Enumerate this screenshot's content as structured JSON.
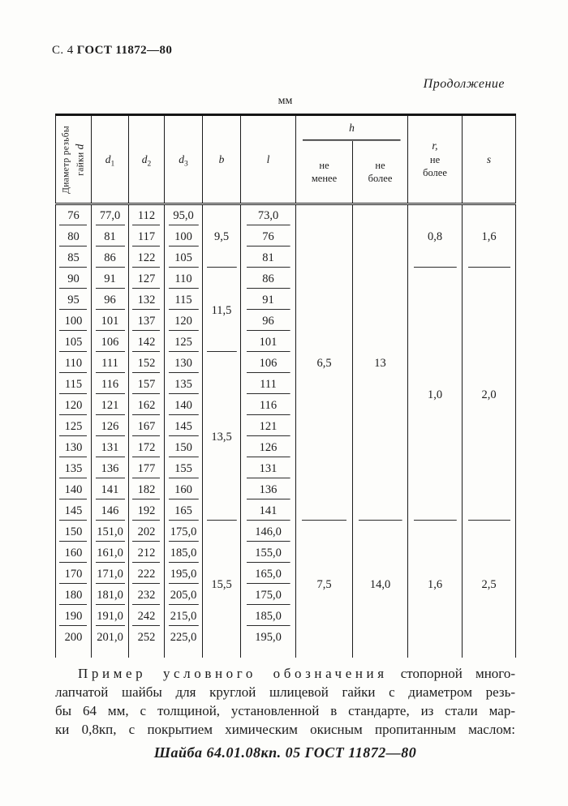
{
  "page_header": {
    "page_label": "С. 4",
    "standard": "ГОСТ 11872—80",
    "continuation": "Продолжение",
    "units": "мм"
  },
  "table": {
    "headers": {
      "col1_line1": "Диаметр резьбы",
      "col1_line2_prefix": "гайки ",
      "col1_d": "d",
      "d1_base": "d",
      "d1_sub": "1",
      "d2_base": "d",
      "d2_sub": "2",
      "d3_base": "d",
      "d3_sub": "3",
      "b": "b",
      "l": "l",
      "h_group": "h",
      "h_min": "не\nменее",
      "h_max": "не\nболее",
      "r_line1": "r,",
      "r_rest": "не\nболее",
      "s": "s"
    },
    "rows": [
      {
        "d": "76",
        "d1": "77,0",
        "d2": "112",
        "d3": "95,0",
        "l": "73,0"
      },
      {
        "d": "80",
        "d1": "81",
        "d2": "117",
        "d3": "100",
        "l": "76"
      },
      {
        "d": "85",
        "d1": "86",
        "d2": "122",
        "d3": "105",
        "l": "81"
      },
      {
        "d": "90",
        "d1": "91",
        "d2": "127",
        "d3": "110",
        "l": "86"
      },
      {
        "d": "95",
        "d1": "96",
        "d2": "132",
        "d3": "115",
        "l": "91"
      },
      {
        "d": "100",
        "d1": "101",
        "d2": "137",
        "d3": "120",
        "l": "96"
      },
      {
        "d": "105",
        "d1": "106",
        "d2": "142",
        "d3": "125",
        "l": "101"
      },
      {
        "d": "110",
        "d1": "111",
        "d2": "152",
        "d3": "130",
        "l": "106"
      },
      {
        "d": "115",
        "d1": "116",
        "d2": "157",
        "d3": "135",
        "l": "111"
      },
      {
        "d": "120",
        "d1": "121",
        "d2": "162",
        "d3": "140",
        "l": "116"
      },
      {
        "d": "125",
        "d1": "126",
        "d2": "167",
        "d3": "145",
        "l": "121"
      },
      {
        "d": "130",
        "d1": "131",
        "d2": "172",
        "d3": "150",
        "l": "126"
      },
      {
        "d": "135",
        "d1": "136",
        "d2": "177",
        "d3": "155",
        "l": "131"
      },
      {
        "d": "140",
        "d1": "141",
        "d2": "182",
        "d3": "160",
        "l": "136"
      },
      {
        "d": "145",
        "d1": "146",
        "d2": "192",
        "d3": "165",
        "l": "141"
      },
      {
        "d": "150",
        "d1": "151,0",
        "d2": "202",
        "d3": "175,0",
        "l": "146,0"
      },
      {
        "d": "160",
        "d1": "161,0",
        "d2": "212",
        "d3": "185,0",
        "l": "155,0"
      },
      {
        "d": "170",
        "d1": "171,0",
        "d2": "222",
        "d3": "195,0",
        "l": "165,0"
      },
      {
        "d": "180",
        "d1": "181,0",
        "d2": "232",
        "d3": "205,0",
        "l": "175,0"
      },
      {
        "d": "190",
        "d1": "191,0",
        "d2": "242",
        "d3": "215,0",
        "l": "185,0"
      },
      {
        "d": "200",
        "d1": "201,0",
        "d2": "252",
        "d3": "225,0",
        "l": "195,0"
      }
    ],
    "b_blocks": [
      {
        "value": "9,5",
        "rows": 3,
        "divider": true
      },
      {
        "value": "11,5",
        "rows": 4,
        "divider": true
      },
      {
        "value": "13,5",
        "rows": 8,
        "divider": true
      },
      {
        "value": "15,5",
        "rows": 6,
        "divider": false
      }
    ],
    "h_min_blocks": [
      {
        "value": "6,5",
        "rows": 15,
        "divider": true
      },
      {
        "value": "7,5",
        "rows": 6,
        "divider": false
      }
    ],
    "h_max_blocks": [
      {
        "value": "13",
        "rows": 15,
        "divider": true
      },
      {
        "value": "14,0",
        "rows": 6,
        "divider": false
      }
    ],
    "r_blocks": [
      {
        "value": "0,8",
        "rows": 3,
        "divider": true
      },
      {
        "value": "1,0",
        "rows": 12,
        "divider": true
      },
      {
        "value": "1,6",
        "rows": 6,
        "divider": false
      }
    ],
    "s_blocks": [
      {
        "value": "1,6",
        "rows": 3,
        "divider": true
      },
      {
        "value": "2,0",
        "rows": 12,
        "divider": true
      },
      {
        "value": "2,5",
        "rows": 6,
        "divider": false
      }
    ]
  },
  "example": {
    "line1_spaced": "Пример условного обозначения",
    "line1_rest": "стопорной много-",
    "line2": "лапчатой шайбы для круглой шлицевой гайки с диаметром резь-",
    "line3": "бы 64 мм, с толщиной, установленной в стандарте, из стали мар-",
    "line4": "ки 0,8кп, с покрытием химическим окисным пропитанным маслом:",
    "designation": "Шайба 64.01.08кп. 05 ГОСТ 11872—80"
  }
}
